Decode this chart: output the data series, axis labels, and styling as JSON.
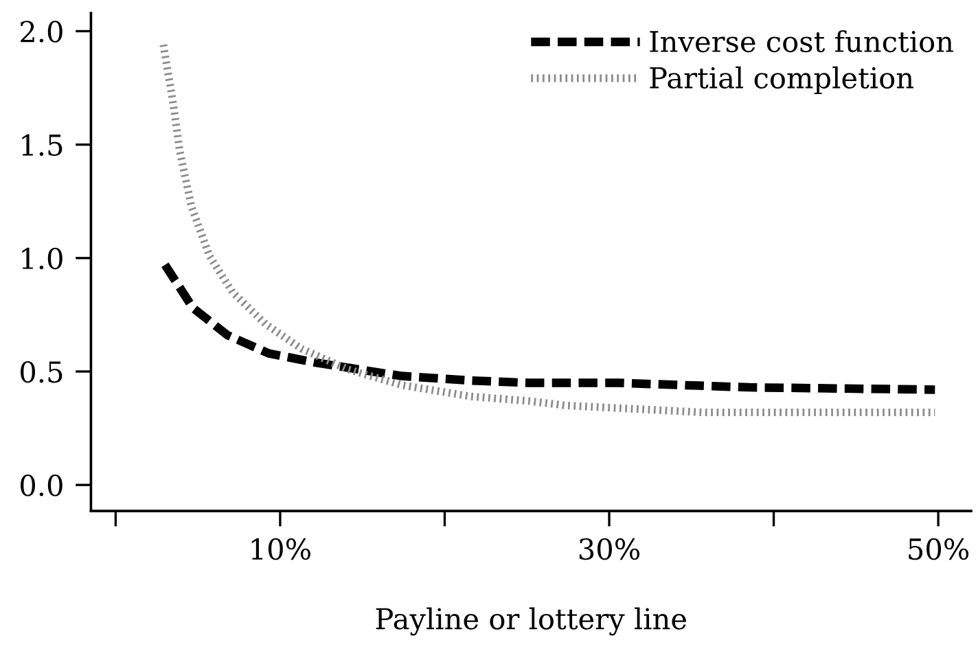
{
  "chart_data": {
    "type": "line",
    "xlabel": "Payline or lottery line",
    "xlim": [
      -1.5,
      52
    ],
    "ylim": [
      -0.115,
      2.08
    ],
    "xticks": [
      {
        "value": 0,
        "label": null
      },
      {
        "value": 10,
        "label": "10%"
      },
      {
        "value": 20,
        "label": null
      },
      {
        "value": 30,
        "label": "30%"
      },
      {
        "value": 40,
        "label": null
      },
      {
        "value": 50,
        "label": "50%"
      }
    ],
    "yticks": [
      {
        "value": 0,
        "label": "0.0"
      },
      {
        "value": 0.5,
        "label": "0.5"
      },
      {
        "value": 1,
        "label": "1.0"
      },
      {
        "value": 1.5,
        "label": "1.5"
      },
      {
        "value": 2,
        "label": "2.0"
      }
    ],
    "grid": false,
    "legend": "top right",
    "marker": "none",
    "series": [
      {
        "name": "Inverse cost function",
        "color": "#000000",
        "line_style": "dashed",
        "x": [
          3.0,
          4.7,
          6.8,
          9.3,
          12.1,
          14.7,
          17.4,
          21.6,
          25.1,
          30.5,
          38.5,
          49.8
        ],
        "values": [
          0.97,
          0.78,
          0.66,
          0.58,
          0.54,
          0.51,
          0.48,
          0.46,
          0.45,
          0.45,
          0.43,
          0.42
        ]
      },
      {
        "name": "Partial completion",
        "color": "#8c8c8c",
        "line_style": "dotted",
        "x": [
          2.9,
          3.5,
          3.9,
          4.6,
          5.7,
          7.1,
          9.1,
          11.3,
          14.1,
          17.4,
          21.6,
          25.1,
          27.4,
          35.7,
          49.8
        ],
        "values": [
          1.94,
          1.68,
          1.47,
          1.23,
          1.01,
          0.85,
          0.71,
          0.6,
          0.51,
          0.44,
          0.39,
          0.37,
          0.35,
          0.32,
          0.32
        ]
      }
    ]
  }
}
